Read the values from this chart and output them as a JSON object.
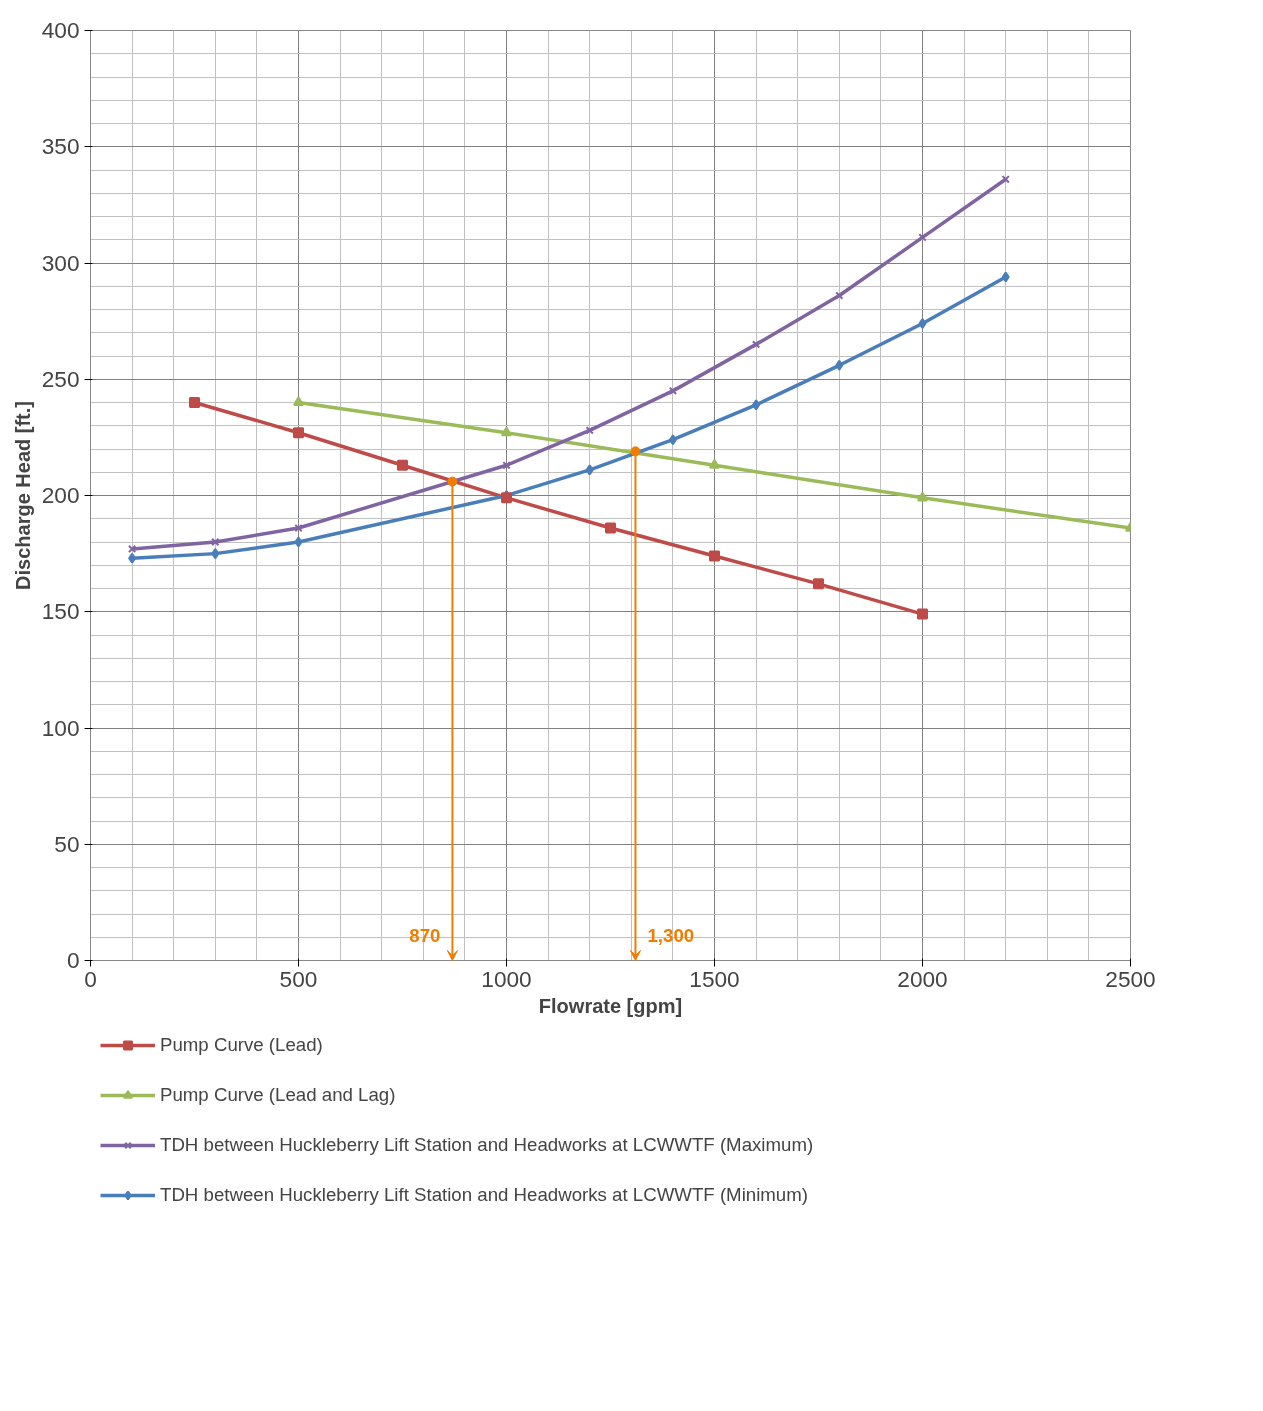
{
  "chart_data": {
    "type": "line",
    "xlabel": "Flowrate [gpm]",
    "ylabel": "Discharge Head [ft.]",
    "xlim": [
      0,
      2500
    ],
    "xticks": [
      0,
      500,
      1000,
      1500,
      2000,
      2500
    ],
    "ylim": [
      0,
      400
    ],
    "yticks": [
      0,
      50,
      100,
      150,
      200,
      250,
      300,
      350,
      400
    ],
    "grid": true,
    "legend": "bottom",
    "line_style": "solid",
    "series": [
      {
        "name": "Pump Curve (Lead)",
        "color": "#be4b48",
        "marker": "square",
        "x": [
          250,
          500,
          750,
          1000,
          1250,
          1500,
          1750,
          2000
        ],
        "values": [
          240,
          227,
          213,
          199,
          186,
          174,
          162,
          149
        ]
      },
      {
        "name": "Pump Curve (Lead and Lag)",
        "color": "#9bbb59",
        "marker": "triangle",
        "x": [
          500,
          1000,
          1500,
          2000,
          2500
        ],
        "values": [
          240,
          227,
          213,
          199,
          186
        ]
      },
      {
        "name": "TDH between Huckleberry Lift Station and Headworks at LCWWTF (Maximum)",
        "color": "#8064a2",
        "marker": "cross",
        "x": [
          100,
          300,
          500,
          1000,
          1200,
          1400,
          1600,
          1800,
          2000,
          2200
        ],
        "values": [
          177,
          180,
          186,
          213,
          228,
          245,
          265,
          286,
          311,
          336
        ]
      },
      {
        "name": "TDH between Huckleberry Lift Station and Headworks at LCWWTF (Minimum)",
        "color": "#4a7ebb",
        "marker": "diamond",
        "x": [
          100,
          300,
          500,
          1000,
          1200,
          1400,
          1600,
          1800,
          2000,
          2200
        ],
        "values": [
          173,
          175,
          180,
          200,
          211,
          224,
          239,
          256,
          274,
          294
        ]
      }
    ],
    "annotations": [
      {
        "text": "870",
        "x": 870,
        "y": 206
      },
      {
        "text": "1,300",
        "x": 1310,
        "y": 219
      }
    ]
  }
}
